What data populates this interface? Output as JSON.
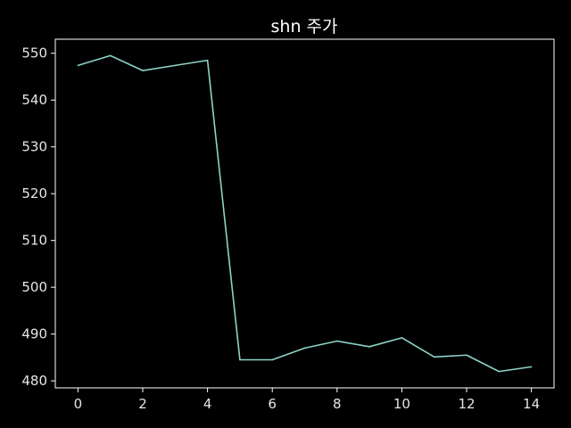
{
  "chart_data": {
    "type": "line",
    "title": "shn 주가",
    "xlabel": "",
    "ylabel": "",
    "x": [
      0,
      1,
      2,
      3,
      4,
      5,
      6,
      7,
      8,
      9,
      10,
      11,
      12,
      13,
      14
    ],
    "series": [
      {
        "values": [
          547.4,
          549.5,
          546.3,
          547.4,
          548.5,
          484.5,
          484.5,
          487.0,
          488.5,
          487.3,
          489.2,
          485.1,
          485.5,
          482.0,
          483.0
        ]
      }
    ],
    "xlim": [
      -0.7,
      14.7
    ],
    "ylim": [
      478.5,
      553.0
    ],
    "xticks": [
      0,
      2,
      4,
      6,
      8,
      10,
      12,
      14
    ],
    "yticks": [
      480,
      490,
      500,
      510,
      520,
      530,
      540,
      550
    ],
    "grid": false,
    "background": "#000000",
    "axis_color": "#ffffff",
    "line_color": "#8dd3c7"
  }
}
